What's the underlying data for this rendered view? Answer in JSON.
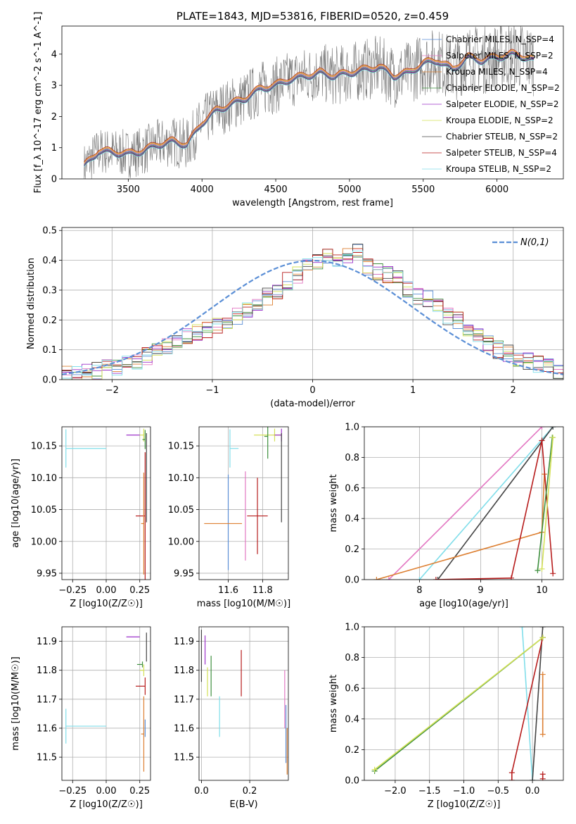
{
  "chart_data": [
    {
      "id": "spectrum",
      "type": "line",
      "title": "PLATE=1843, MJD=53816, FIBERID=0520, z=0.459",
      "xlabel": "wavelength [Angstrom, rest frame]",
      "ylabel": "Flux [f_λ 10^-17 erg cm^-2 s^-1 A^-1]",
      "xlim": [
        3050,
        6450
      ],
      "ylim": [
        0,
        4.9
      ],
      "xticks": [
        3500,
        4000,
        4500,
        5000,
        5500,
        6000
      ],
      "yticks": [
        0,
        1,
        2,
        3,
        4
      ],
      "grid": false,
      "legend_position": "upper-right",
      "data_x": [
        3200,
        3300,
        3400,
        3500,
        3600,
        3700,
        3800,
        3900,
        4000,
        4100,
        4200,
        4300,
        4400,
        4500,
        4600,
        4700,
        4800,
        4900,
        5000,
        5100,
        5200,
        5300,
        5400,
        5500,
        5600,
        5700,
        5800,
        5900,
        6000,
        6100,
        6200,
        6250
      ],
      "data_y": [
        0.4,
        0.9,
        0.85,
        0.8,
        0.9,
        1.1,
        1.2,
        1.1,
        1.8,
        2.2,
        2.4,
        2.6,
        2.9,
        3.0,
        3.2,
        3.3,
        3.4,
        3.3,
        3.4,
        3.5,
        3.6,
        3.3,
        3.4,
        3.7,
        3.8,
        3.5,
        3.9,
        3.8,
        3.9,
        4.0,
        3.9,
        3.8
      ],
      "series": [
        {
          "name": "Chabrier MILES, N_SSP=4",
          "color": "#5b8fd6",
          "offset": 0.0
        },
        {
          "name": "Salpeter MILES, N_SSP=2",
          "color": "#e377c2",
          "offset": 0.02
        },
        {
          "name": "Kroupa MILES, N_SSP=4",
          "color": "#dd8033",
          "offset": 0.04
        },
        {
          "name": "Chabrier ELODIE, N_SSP=2",
          "color": "#3e8f3e",
          "offset": -0.02
        },
        {
          "name": "Salpeter ELODIE, N_SSP=2",
          "color": "#9b30c9",
          "offset": -0.04
        },
        {
          "name": "Kroupa ELODIE, N_SSP=2",
          "color": "#d4e157",
          "offset": 0.06
        },
        {
          "name": "Chabrier STELIB, N_SSP=2",
          "color": "#444444",
          "offset": -0.06
        },
        {
          "name": "Salpeter STELIB, N_SSP=4",
          "color": "#b71c1c",
          "offset": 0.08
        },
        {
          "name": "Kroupa STELIB, N_SSP=2",
          "color": "#80deea",
          "offset": -0.08
        }
      ]
    },
    {
      "id": "residuals",
      "type": "line",
      "xlabel": "(data-model)/error",
      "ylabel": "Normed distribution",
      "xlim": [
        -2.5,
        2.5
      ],
      "ylim": [
        0,
        0.51
      ],
      "xticks": [
        -2,
        -1,
        0,
        1,
        2
      ],
      "yticks": [
        0.0,
        0.1,
        0.2,
        0.3,
        0.4,
        0.5
      ],
      "grid": true,
      "legend_position": "upper-right",
      "legend_label": "N(0,1)",
      "gaussian_color": "#5b8fd6",
      "hist_bin_width": 0.1,
      "hist_x_start": -2.5,
      "hist_values": [
        0.02,
        0.02,
        0.03,
        0.03,
        0.04,
        0.04,
        0.05,
        0.06,
        0.08,
        0.1,
        0.11,
        0.13,
        0.15,
        0.16,
        0.17,
        0.18,
        0.18,
        0.21,
        0.23,
        0.25,
        0.28,
        0.3,
        0.33,
        0.35,
        0.38,
        0.4,
        0.42,
        0.4,
        0.41,
        0.44,
        0.38,
        0.36,
        0.35,
        0.34,
        0.3,
        0.28,
        0.27,
        0.24,
        0.21,
        0.2,
        0.17,
        0.15,
        0.12,
        0.1,
        0.09,
        0.07,
        0.06,
        0.05,
        0.04,
        0.03
      ]
    },
    {
      "id": "age-vs-Z",
      "type": "scatter",
      "xlabel": "Z [log10(Z/Z☉)]",
      "ylabel": "age  [log10(age/yr)]",
      "xlim": [
        -0.33,
        0.33
      ],
      "ylim": [
        9.94,
        10.18
      ],
      "xticks": [
        -0.25,
        0.0,
        0.25
      ],
      "xtick_labels": [
        "−0.25",
        "0.00",
        "0.25"
      ],
      "yticks": [
        9.95,
        10.0,
        10.05,
        10.1,
        10.15
      ],
      "grid": true,
      "points": [
        {
          "x": -0.3,
          "y": 10.146,
          "xerr_low": 0.0,
          "xerr_high": 0.3,
          "yerr": 0.03,
          "color": "#80deea"
        },
        {
          "x": 0.2,
          "y": 10.167,
          "xerr_low": 0.05,
          "xerr_high": 0.05,
          "yerr": 0.0,
          "color": "#9b30c9"
        },
        {
          "x": 0.28,
          "y": 10.167,
          "xerr_low": 0.03,
          "xerr_high": 0.0,
          "yerr": 0.01,
          "color": "#d4e157"
        },
        {
          "x": 0.29,
          "y": 10.16,
          "xerr_low": 0.02,
          "xerr_high": 0.0,
          "yerr": 0.015,
          "color": "#3e8f3e"
        },
        {
          "x": 0.3,
          "y": 10.1,
          "xerr_low": 0.0,
          "xerr_high": 0.0,
          "yerr": 0.07,
          "color": "#444444"
        },
        {
          "x": 0.29,
          "y": 10.04,
          "xerr_low": 0.07,
          "xerr_high": 0.0,
          "yerr": 0.1,
          "color": "#b71c1c"
        },
        {
          "x": 0.28,
          "y": 10.028,
          "xerr_low": 0.02,
          "xerr_high": 0.0,
          "yerr": 0.08,
          "color": "#dd8033"
        }
      ]
    },
    {
      "id": "age-vs-mass",
      "type": "scatter",
      "xlabel": "mass [log10(M/M☉)]",
      "ylabel": "",
      "xlim": [
        11.43,
        11.95
      ],
      "ylim": [
        9.94,
        10.18
      ],
      "xticks": [
        11.6,
        11.8
      ],
      "yticks": [
        9.95,
        10.0,
        10.05,
        10.1,
        10.15
      ],
      "grid": true,
      "points": [
        {
          "x": 11.61,
          "y": 10.146,
          "xerr_low": 0.0,
          "xerr_high": 0.05,
          "yerr": 0.03,
          "color": "#80deea"
        },
        {
          "x": 11.6,
          "y": 10.03,
          "xerr_low": 0.0,
          "xerr_high": 0.0,
          "yerr": 0.075,
          "color": "#5b8fd6"
        },
        {
          "x": 11.58,
          "y": 10.028,
          "xerr_low": 0.12,
          "xerr_high": 0.1,
          "yerr": 0.0,
          "color": "#dd8033"
        },
        {
          "x": 11.7,
          "y": 10.04,
          "xerr_low": 0.0,
          "xerr_high": 0.0,
          "yerr": 0.07,
          "color": "#e377c2"
        },
        {
          "x": 11.77,
          "y": 10.04,
          "xerr_low": 0.06,
          "xerr_high": 0.06,
          "yerr": 0.06,
          "color": "#b71c1c"
        },
        {
          "x": 11.87,
          "y": 10.167,
          "xerr_low": 0.12,
          "xerr_high": 0.04,
          "yerr": 0.01,
          "color": "#d4e157"
        },
        {
          "x": 11.91,
          "y": 10.167,
          "xerr_low": 0.04,
          "xerr_high": 0.0,
          "yerr": 0.01,
          "color": "#9b30c9"
        },
        {
          "x": 11.83,
          "y": 10.165,
          "xerr_low": 0.02,
          "xerr_high": 0.0,
          "yerr": 0.035,
          "color": "#3e8f3e"
        },
        {
          "x": 11.91,
          "y": 10.1,
          "xerr_low": 0.0,
          "xerr_high": 0.0,
          "yerr": 0.07,
          "color": "#444444"
        }
      ]
    },
    {
      "id": "weight-vs-age",
      "type": "line",
      "xlabel": "age  [log10(age/yr)]",
      "ylabel": "mass weight",
      "xlim": [
        7.1,
        10.35
      ],
      "ylim": [
        0.0,
        1.0
      ],
      "xticks": [
        8,
        9,
        10
      ],
      "yticks": [
        0.0,
        0.2,
        0.4,
        0.6,
        0.8,
        1.0
      ],
      "grid": true,
      "series": [
        {
          "color": "#e377c2",
          "points": [
            [
              7.5,
              0.0
            ],
            [
              10.0,
              1.0
            ]
          ]
        },
        {
          "color": "#80deea",
          "points": [
            [
              8.0,
              0.0
            ],
            [
              10.18,
              1.0
            ]
          ]
        },
        {
          "color": "#444444",
          "points": [
            [
              8.3,
              0.0
            ],
            [
              10.18,
              1.0
            ]
          ]
        },
        {
          "color": "#dd8033",
          "points": [
            [
              7.3,
              0.0
            ],
            [
              10.0,
              0.31
            ],
            [
              10.04,
              0.69
            ]
          ]
        },
        {
          "color": "#b71c1c",
          "points": [
            [
              8.27,
              0.0
            ],
            [
              9.5,
              0.01
            ],
            [
              10.0,
              0.91
            ],
            [
              10.18,
              0.04
            ]
          ]
        },
        {
          "color": "#3e8f3e",
          "points": [
            [
              9.93,
              0.06
            ],
            [
              10.17,
              0.93
            ]
          ]
        },
        {
          "color": "#d4e157",
          "points": [
            [
              10.0,
              0.07
            ],
            [
              10.18,
              0.93
            ]
          ]
        }
      ]
    },
    {
      "id": "mass-vs-Z",
      "type": "scatter",
      "xlabel": "Z [log10(Z/Z☉)]",
      "ylabel": "mass [log10(M/M☉)]",
      "xlim": [
        -0.33,
        0.33
      ],
      "ylim": [
        11.42,
        11.95
      ],
      "xticks": [
        -0.25,
        0.0,
        0.25
      ],
      "xtick_labels": [
        "−0.25",
        "0.00",
        "0.25"
      ],
      "yticks": [
        11.5,
        11.6,
        11.7,
        11.8,
        11.9
      ],
      "grid": true,
      "points": [
        {
          "x": -0.3,
          "y": 11.607,
          "xerr_low": 0.0,
          "xerr_high": 0.3,
          "yerr": 0.06,
          "color": "#80deea"
        },
        {
          "x": 0.2,
          "y": 11.915,
          "xerr_low": 0.05,
          "xerr_high": 0.05,
          "yerr": 0.0,
          "color": "#9b30c9"
        },
        {
          "x": 0.27,
          "y": 11.82,
          "xerr_low": 0.04,
          "xerr_high": 0.0,
          "yerr": 0.01,
          "color": "#3e8f3e"
        },
        {
          "x": 0.28,
          "y": 11.8,
          "xerr_low": 0.03,
          "xerr_high": 0.0,
          "yerr": 0.02,
          "color": "#d4e157"
        },
        {
          "x": 0.3,
          "y": 11.88,
          "xerr_low": 0.0,
          "xerr_high": 0.0,
          "yerr": 0.05,
          "color": "#444444"
        },
        {
          "x": 0.29,
          "y": 11.745,
          "xerr_low": 0.07,
          "xerr_high": 0.0,
          "yerr": 0.03,
          "color": "#b71c1c"
        },
        {
          "x": 0.28,
          "y": 11.58,
          "xerr_low": 0.02,
          "xerr_high": 0.0,
          "yerr": 0.13,
          "color": "#dd8033"
        },
        {
          "x": 0.29,
          "y": 11.6,
          "xerr_low": 0.0,
          "xerr_high": 0.0,
          "yerr": 0.03,
          "color": "#5b8fd6"
        }
      ]
    },
    {
      "id": "mass-vs-EBV",
      "type": "scatter",
      "xlabel": "E(B-V)",
      "ylabel": "",
      "xlim": [
        -0.01,
        0.36
      ],
      "ylim": [
        11.42,
        11.95
      ],
      "xticks": [
        0.0,
        0.2
      ],
      "yticks": [
        11.5,
        11.6,
        11.7,
        11.8,
        11.9
      ],
      "grid": true,
      "points": [
        {
          "x": 0.0,
          "y": 11.85,
          "xerr_low": 0,
          "xerr_high": 0,
          "yerr": 0.09,
          "color": "#444444"
        },
        {
          "x": 0.015,
          "y": 11.87,
          "xerr_low": 0,
          "xerr_high": 0,
          "yerr": 0.05,
          "color": "#9b30c9"
        },
        {
          "x": 0.025,
          "y": 11.76,
          "xerr_low": 0,
          "xerr_high": 0,
          "yerr": 0.05,
          "color": "#d4e157"
        },
        {
          "x": 0.04,
          "y": 11.78,
          "xerr_low": 0,
          "xerr_high": 0,
          "yerr": 0.07,
          "color": "#3e8f3e"
        },
        {
          "x": 0.075,
          "y": 11.64,
          "xerr_low": 0,
          "xerr_high": 0,
          "yerr": 0.07,
          "color": "#80deea"
        },
        {
          "x": 0.165,
          "y": 11.79,
          "xerr_low": 0,
          "xerr_high": 0,
          "yerr": 0.08,
          "color": "#b71c1c"
        },
        {
          "x": 0.345,
          "y": 11.7,
          "xerr_low": 0,
          "xerr_high": 0,
          "yerr": 0.1,
          "color": "#e377c2"
        },
        {
          "x": 0.35,
          "y": 11.58,
          "xerr_low": 0,
          "xerr_high": 0,
          "yerr": 0.1,
          "color": "#5b8fd6"
        },
        {
          "x": 0.355,
          "y": 11.52,
          "xerr_low": 0,
          "xerr_high": 0,
          "yerr": 0.08,
          "color": "#dd8033"
        }
      ]
    },
    {
      "id": "weight-vs-Z",
      "type": "line",
      "xlabel": "Z [log10(Z/Z☉)]",
      "ylabel": "mass weight",
      "xlim": [
        -2.45,
        0.45
      ],
      "ylim": [
        0.0,
        1.0
      ],
      "xticks": [
        -2.0,
        -1.5,
        -1.0,
        -0.5,
        0.0
      ],
      "xtick_labels": [
        "−2.0",
        "−1.5",
        "−1.0",
        "−0.5",
        "0.0"
      ],
      "yticks": [
        0.0,
        0.2,
        0.4,
        0.6,
        0.8,
        1.0
      ],
      "grid": true,
      "series": [
        {
          "color": "#80deea",
          "points": [
            [
              -0.15,
              1.0
            ],
            [
              0.0,
              0.0
            ]
          ]
        },
        {
          "color": "#444444",
          "points": [
            [
              0.0,
              0.0
            ],
            [
              0.15,
              1.0
            ]
          ]
        },
        {
          "color": "#b71c1c",
          "points": [
            [
              -0.3,
              0.0
            ],
            [
              -0.3,
              0.05
            ],
            [
              0.15,
              0.93
            ]
          ]
        },
        {
          "color": "#3e8f3e",
          "points": [
            [
              -2.3,
              0.06
            ],
            [
              0.15,
              0.93
            ]
          ]
        },
        {
          "color": "#d4e157",
          "points": [
            [
              -2.3,
              0.07
            ],
            [
              0.15,
              0.93
            ]
          ]
        },
        {
          "color": "#dd8033",
          "points": [
            [
              0.15,
              0.3
            ],
            [
              0.15,
              0.69
            ]
          ]
        },
        {
          "color": "#b71c1c",
          "points": [
            [
              0.15,
              0.01
            ],
            [
              0.15,
              0.04
            ]
          ]
        }
      ]
    }
  ]
}
